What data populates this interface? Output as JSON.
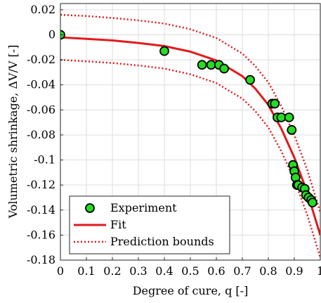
{
  "chart_data": {
    "type": "scatter",
    "xlabel": "Degree of cure, q [-]",
    "ylabel": "Volumetric shrinkage, ΔV/V [-]",
    "xlim": [
      0,
      1
    ],
    "ylim": [
      -0.18,
      0.025
    ],
    "grid": true,
    "legend_position": "bottom-left",
    "x_ticks": [
      0,
      0.1,
      0.2,
      0.3,
      0.4,
      0.5,
      0.6,
      0.7,
      0.8,
      0.9,
      1
    ],
    "x_tick_labels": [
      "0",
      "0.1",
      "0.2",
      "0.3",
      "0.4",
      "0.5",
      "0.6",
      "0.7",
      "0.8",
      "0.9",
      "1"
    ],
    "y_ticks": [
      0.02,
      0,
      -0.02,
      -0.04,
      -0.06,
      -0.08,
      -0.1,
      -0.12,
      -0.14,
      -0.16,
      -0.18
    ],
    "y_tick_labels": [
      "0.02",
      "0",
      "-0.02",
      "-0.04",
      "-0.06",
      "-0.08",
      "-0.1",
      "-0.12",
      "-0.14",
      "-0.16",
      "-0.18"
    ],
    "series": [
      {
        "name": "Experiment",
        "kind": "scatter",
        "color": "#22dd22",
        "edge_color": "#000000",
        "x": [
          0.0,
          0.4,
          0.545,
          0.58,
          0.61,
          0.63,
          0.73,
          0.815,
          0.825,
          0.835,
          0.85,
          0.88,
          0.89,
          0.895,
          0.9,
          0.905,
          0.91,
          0.915,
          0.93,
          0.94,
          0.945,
          0.955,
          0.965,
          0.97
        ],
        "y": [
          0.0,
          -0.013,
          -0.024,
          -0.024,
          -0.024,
          -0.027,
          -0.036,
          -0.055,
          -0.055,
          -0.066,
          -0.066,
          -0.066,
          -0.076,
          -0.104,
          -0.109,
          -0.114,
          -0.12,
          -0.12,
          -0.122,
          -0.123,
          -0.128,
          -0.13,
          -0.132,
          -0.134
        ]
      },
      {
        "name": "Fit",
        "kind": "line",
        "color": "#e31a1c",
        "style": "solid",
        "x": [
          0,
          0.1,
          0.2,
          0.3,
          0.4,
          0.5,
          0.6,
          0.7,
          0.75,
          0.8,
          0.85,
          0.9,
          0.95,
          1.0
        ],
        "y": [
          -0.002,
          -0.0032,
          -0.0045,
          -0.0065,
          -0.009,
          -0.0135,
          -0.0205,
          -0.033,
          -0.043,
          -0.056,
          -0.075,
          -0.098,
          -0.126,
          -0.16
        ]
      },
      {
        "name": "Prediction bounds",
        "kind": "line",
        "color": "#e31a1c",
        "style": "dotted",
        "x": [
          0,
          0.1,
          0.2,
          0.3,
          0.4,
          0.5,
          0.6,
          0.7,
          0.75,
          0.8,
          0.85,
          0.9,
          0.95,
          1.0
        ],
        "y": [
          0.016,
          0.015,
          0.0135,
          0.0115,
          0.009,
          0.0045,
          -0.0025,
          -0.015,
          -0.025,
          -0.038,
          -0.057,
          -0.08,
          -0.108,
          -0.142
        ]
      },
      {
        "name": "Prediction bounds (lower)",
        "kind": "line",
        "color": "#e31a1c",
        "style": "dotted",
        "x": [
          0,
          0.1,
          0.2,
          0.3,
          0.4,
          0.5,
          0.6,
          0.7,
          0.75,
          0.8,
          0.85,
          0.9,
          0.95,
          1.0
        ],
        "y": [
          -0.02,
          -0.0212,
          -0.0225,
          -0.0245,
          -0.027,
          -0.0315,
          -0.0385,
          -0.051,
          -0.061,
          -0.074,
          -0.093,
          -0.116,
          -0.144,
          -0.178
        ]
      }
    ],
    "legend": [
      {
        "label": "Experiment",
        "kind": "marker"
      },
      {
        "label": "Fit",
        "kind": "solid"
      },
      {
        "label": "Prediction bounds",
        "kind": "dotted"
      }
    ]
  }
}
